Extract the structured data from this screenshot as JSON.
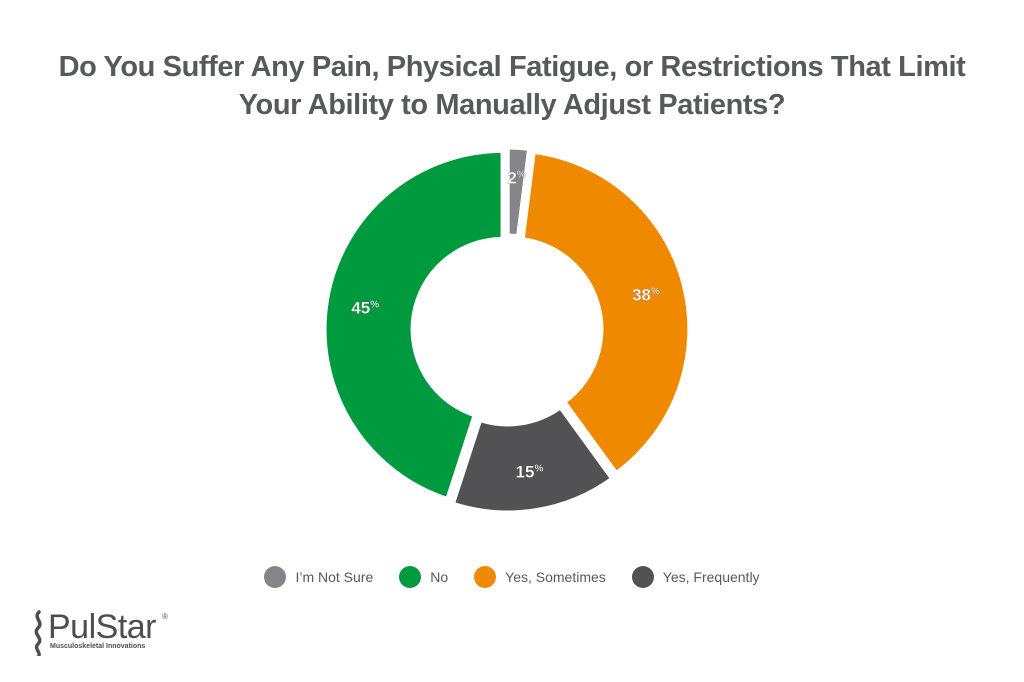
{
  "chart_data": {
    "type": "pie",
    "title_lines": [
      "Do You Suffer Any Pain, Physical Fatigue, or Restrictions That Limit",
      "Your Ability to Manually Adjust Patients?"
    ],
    "categories": [
      "I'm Not Sure",
      "Yes, Sometimes",
      "Yes, Frequently",
      "No"
    ],
    "values": [
      2,
      38,
      15,
      45
    ],
    "colors": [
      "#848588",
      "#ef8a00",
      "#525254",
      "#009a3e"
    ],
    "labels": [
      "2",
      "38",
      "15",
      "45"
    ],
    "label_suffix": "%",
    "legend": {
      "placement": "bottom",
      "items": [
        {
          "label": "I’m Not Sure",
          "color": "#848588"
        },
        {
          "label": "No",
          "color": "#009a3e"
        },
        {
          "label": "Yes, Sometimes",
          "color": "#ef8a00"
        },
        {
          "label": "Yes, Frequently",
          "color": "#525254"
        }
      ]
    }
  },
  "logo": {
    "name": "PulStar",
    "registered": "®",
    "tagline": "Musculoskeletal Innovations"
  }
}
